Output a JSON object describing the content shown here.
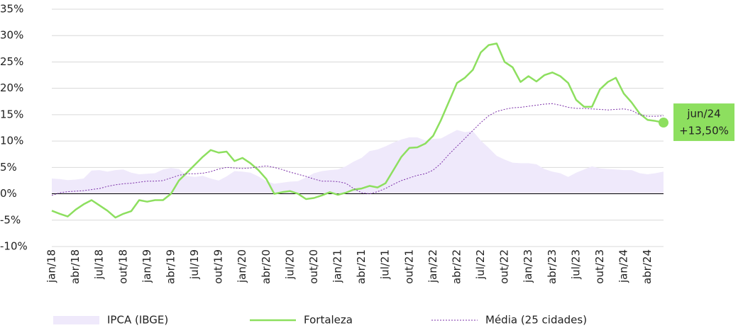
{
  "chart_data": {
    "type": "line",
    "categories": [
      "jan/18",
      null,
      null,
      "abr/18",
      null,
      null,
      "jul/18",
      null,
      null,
      "out/18",
      null,
      null,
      "jan/19",
      null,
      null,
      "abr/19",
      null,
      null,
      "jul/19",
      null,
      null,
      "out/19",
      null,
      null,
      "jan/20",
      null,
      null,
      "abr/20",
      null,
      null,
      "jul/20",
      null,
      null,
      "out/20",
      null,
      null,
      "jan/21",
      null,
      null,
      "abr/21",
      null,
      null,
      "jul/21",
      null,
      null,
      "out/21",
      null,
      null,
      "jan/22",
      null,
      null,
      "abr/22",
      null,
      null,
      "jul/22",
      null,
      null,
      "out/22",
      null,
      null,
      "jan/23",
      null,
      null,
      "abr/23",
      null,
      null,
      "jul/23",
      null,
      null,
      "out/23",
      null,
      null,
      "jan/24",
      null,
      null,
      "abr/24",
      null,
      null
    ],
    "series": [
      {
        "name": "IPCA (IBGE)",
        "style": "area",
        "color": "#efe9fb",
        "values": [
          2.9,
          2.8,
          2.6,
          2.7,
          2.9,
          4.4,
          4.5,
          4.2,
          4.5,
          4.6,
          4.0,
          3.7,
          3.8,
          3.9,
          4.6,
          4.9,
          4.7,
          3.4,
          3.2,
          3.4,
          2.9,
          2.5,
          3.3,
          4.3,
          4.2,
          4.0,
          3.3,
          2.4,
          1.9,
          2.1,
          2.3,
          2.4,
          3.1,
          3.9,
          4.3,
          4.5,
          4.6,
          5.2,
          6.1,
          6.8,
          8.1,
          8.4,
          9.0,
          9.7,
          10.3,
          10.7,
          10.7,
          10.1,
          10.4,
          10.5,
          11.3,
          12.1,
          11.7,
          11.9,
          10.1,
          8.7,
          7.2,
          6.5,
          5.9,
          5.8,
          5.8,
          5.6,
          4.7,
          4.2,
          3.9,
          3.2,
          4.0,
          4.6,
          5.2,
          4.8,
          4.7,
          4.6,
          4.5,
          4.5,
          3.9,
          3.7,
          3.9,
          4.2
        ]
      },
      {
        "name": "Fortaleza",
        "style": "solid",
        "color": "#8ddf5f",
        "values": [
          -3.2,
          -3.8,
          -4.3,
          -3.0,
          -2.0,
          -1.2,
          -2.2,
          -3.2,
          -4.5,
          -3.8,
          -3.3,
          -1.2,
          -1.5,
          -1.2,
          -1.2,
          0.0,
          2.5,
          4.0,
          5.5,
          7.0,
          8.3,
          7.8,
          8.0,
          6.2,
          6.8,
          5.8,
          4.5,
          2.8,
          0.0,
          0.3,
          0.5,
          0.0,
          -1.0,
          -0.8,
          -0.3,
          0.3,
          -0.2,
          0.2,
          0.8,
          1.0,
          1.5,
          1.2,
          2.0,
          4.5,
          7.0,
          8.7,
          8.8,
          9.5,
          11.0,
          14.0,
          17.5,
          21.0,
          22.0,
          23.5,
          26.8,
          28.2,
          28.5,
          25.0,
          24.0,
          21.2,
          22.3,
          21.3,
          22.5,
          23.0,
          22.3,
          21.0,
          17.8,
          16.5,
          16.5,
          19.8,
          21.2,
          22.0,
          19.0,
          17.3,
          15.2,
          14.0,
          13.8,
          13.5
        ],
        "value_labels": [
          null,
          null,
          null,
          null,
          null,
          null,
          null,
          null,
          null,
          null,
          null,
          null,
          null,
          null,
          null,
          null,
          null,
          null,
          null,
          null,
          null,
          null,
          null,
          null,
          null,
          null,
          null,
          null,
          null,
          null,
          null,
          null,
          null,
          null,
          null,
          null,
          null,
          null,
          null,
          null,
          null,
          null,
          null,
          null,
          null,
          null,
          null,
          null,
          null,
          null,
          null,
          null,
          null,
          null,
          null,
          null,
          null,
          null,
          null,
          null,
          null,
          null,
          null,
          null,
          null,
          null,
          null,
          null,
          null,
          null,
          null,
          null,
          null,
          null,
          null,
          null,
          null,
          "+13,50%"
        ],
        "callout": "jun/24"
      },
      {
        "name": "Média (25 cidades)",
        "style": "dotted",
        "color": "#7b2fa8",
        "values": [
          -0.3,
          0.2,
          0.4,
          0.5,
          0.6,
          0.8,
          1.0,
          1.4,
          1.7,
          1.9,
          2.0,
          2.2,
          2.4,
          2.4,
          2.5,
          3.0,
          3.5,
          3.8,
          3.8,
          3.9,
          4.2,
          4.7,
          5.0,
          4.9,
          4.8,
          4.9,
          5.1,
          5.3,
          5.0,
          4.6,
          4.1,
          3.7,
          3.3,
          2.8,
          2.4,
          2.4,
          2.3,
          2.0,
          1.0,
          0.2,
          0.0,
          0.4,
          1.0,
          1.8,
          2.5,
          3.0,
          3.5,
          3.8,
          4.5,
          5.8,
          7.5,
          9.0,
          10.5,
          12.0,
          13.5,
          14.8,
          15.6,
          16.0,
          16.3,
          16.4,
          16.6,
          16.8,
          17.0,
          17.1,
          16.8,
          16.4,
          16.2,
          16.2,
          16.1,
          16.0,
          15.9,
          16.0,
          16.1,
          15.8,
          15.0,
          14.7,
          14.7,
          14.8
        ]
      }
    ],
    "ylim": [
      -10,
      35
    ],
    "yticks": [
      {
        "value": -10,
        "label": "-10%"
      },
      {
        "value": -5,
        "label": "-5%"
      },
      {
        "value": 0,
        "label": "0%"
      },
      {
        "value": 5,
        "label": "5%"
      },
      {
        "value": 10,
        "label": "10%"
      },
      {
        "value": 15,
        "label": "15%"
      },
      {
        "value": 20,
        "label": "20%"
      },
      {
        "value": 25,
        "label": "25%"
      },
      {
        "value": 30,
        "label": "30%"
      },
      {
        "value": 35,
        "label": "35%"
      }
    ],
    "grid": true,
    "legend": "bottom"
  }
}
